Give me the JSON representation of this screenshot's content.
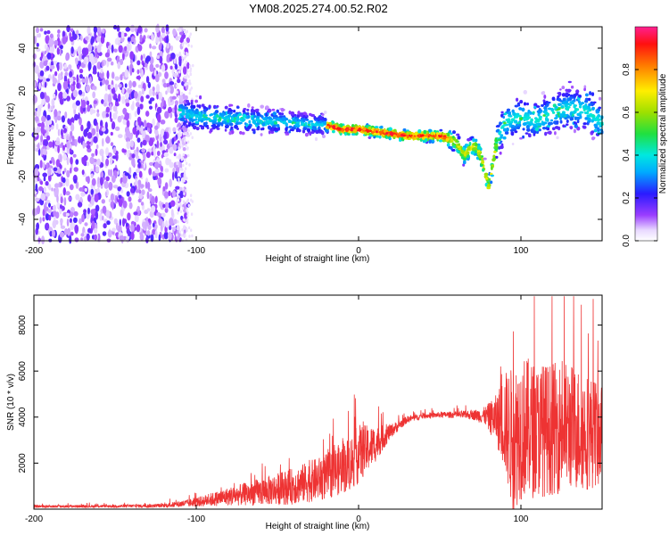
{
  "title": "YM08.2025.274.00.52.R02",
  "chart_data": [
    {
      "type": "heatmap",
      "name": "spectrogram",
      "xlabel": "Height of straight line (km)",
      "ylabel": "Frequency (Hz)",
      "xlim": [
        -200,
        150
      ],
      "ylim": [
        -50,
        50
      ],
      "xticks": [
        -200,
        -100,
        0,
        100
      ],
      "xtick_labels": [
        "-200",
        "-100",
        "0",
        "100"
      ],
      "yticks": [
        -40,
        -20,
        0,
        20,
        40
      ],
      "ytick_labels": [
        "-40",
        "-20",
        "0",
        "20",
        "40"
      ],
      "colorbar": {
        "label": "Normalized spectral amplitude",
        "range": [
          0,
          1
        ],
        "ticks": [
          0.0,
          0.2,
          0.4,
          0.6,
          0.8
        ],
        "tick_labels": [
          "0.0",
          "0.2",
          "0.4",
          "0.6",
          "0.8"
        ]
      },
      "ridge": {
        "x": [
          -110,
          -100,
          -80,
          -60,
          -40,
          -20,
          -10,
          0,
          10,
          20,
          30,
          40,
          50,
          55,
          60,
          65,
          70,
          72,
          75,
          78,
          80,
          83,
          85,
          90,
          95,
          100,
          110,
          120,
          130,
          140,
          150
        ],
        "y": [
          10,
          8,
          7,
          6,
          5,
          4,
          2,
          2,
          1,
          0,
          -1,
          -1,
          -1,
          -2,
          -4,
          -10,
          -6,
          -6,
          -10,
          -18,
          -25,
          -14,
          -4,
          5,
          7,
          8,
          6,
          10,
          12,
          11,
          5
        ]
      }
    },
    {
      "type": "line",
      "name": "snr",
      "xlabel": "Height of straight line (km)",
      "ylabel": "SNR (10 * v/v)",
      "xlim": [
        -200,
        150
      ],
      "ylim": [
        0,
        9300
      ],
      "xticks": [
        -200,
        -100,
        0,
        100
      ],
      "xtick_labels": [
        "-200",
        "-100",
        "0",
        "100"
      ],
      "yticks": [
        2000,
        4000,
        6000,
        8000
      ],
      "ytick_labels": [
        "2000",
        "4000",
        "6000",
        "8000"
      ],
      "color": "#ee3333",
      "envelope": {
        "x": [
          -200,
          -150,
          -120,
          -100,
          -80,
          -60,
          -40,
          -20,
          -5,
          0,
          10,
          20,
          30,
          40,
          50,
          60,
          70,
          78,
          85,
          90,
          95,
          100,
          110,
          120,
          130,
          140,
          150
        ],
        "mean": [
          120,
          130,
          150,
          300,
          550,
          750,
          1000,
          1400,
          2000,
          2400,
          2800,
          3400,
          3900,
          4050,
          4100,
          4100,
          4100,
          4050,
          3900,
          3800,
          3000,
          3600,
          3400,
          3500,
          3600,
          3400,
          3200
        ],
        "spread": [
          60,
          60,
          80,
          200,
          400,
          600,
          800,
          1000,
          1200,
          1300,
          800,
          300,
          150,
          120,
          120,
          150,
          200,
          400,
          1100,
          2200,
          3200,
          3200,
          2900,
          2900,
          2800,
          2600,
          2200
        ]
      }
    }
  ]
}
